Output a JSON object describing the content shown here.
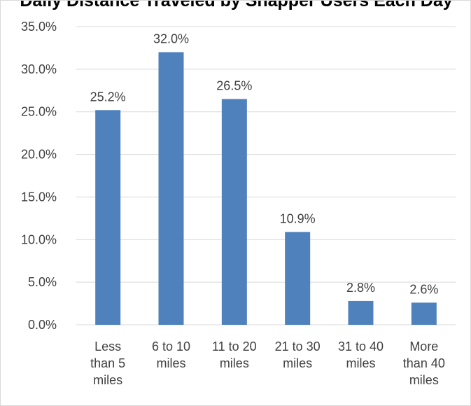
{
  "chart_data": {
    "type": "bar",
    "title": "Daily Distance Traveled by Snapper Users Each Day",
    "xlabel": "",
    "ylabel": "",
    "categories": [
      [
        "Less",
        "than 5",
        "miles"
      ],
      [
        "6 to 10",
        "miles"
      ],
      [
        "11 to 20",
        "miles"
      ],
      [
        "21 to 30",
        "miles"
      ],
      [
        "31 to 40",
        "miles"
      ],
      [
        "More",
        "than 40",
        "miles"
      ]
    ],
    "values": [
      25.2,
      32.0,
      26.5,
      10.9,
      2.8,
      2.6
    ],
    "data_labels": [
      "25.2%",
      "32.0%",
      "26.5%",
      "10.9%",
      "2.8%",
      "2.6%"
    ],
    "ylim": [
      0,
      35
    ],
    "yticks": [
      0,
      5,
      10,
      15,
      20,
      25,
      30,
      35
    ],
    "ytick_labels": [
      "0.0%",
      "5.0%",
      "10.0%",
      "15.0%",
      "20.0%",
      "25.0%",
      "30.0%",
      "35.0%"
    ],
    "grid": true,
    "legend": "none",
    "colors": {
      "bar": "#4f81bd",
      "grid": "#d9d9d9",
      "text": "#404040"
    }
  }
}
